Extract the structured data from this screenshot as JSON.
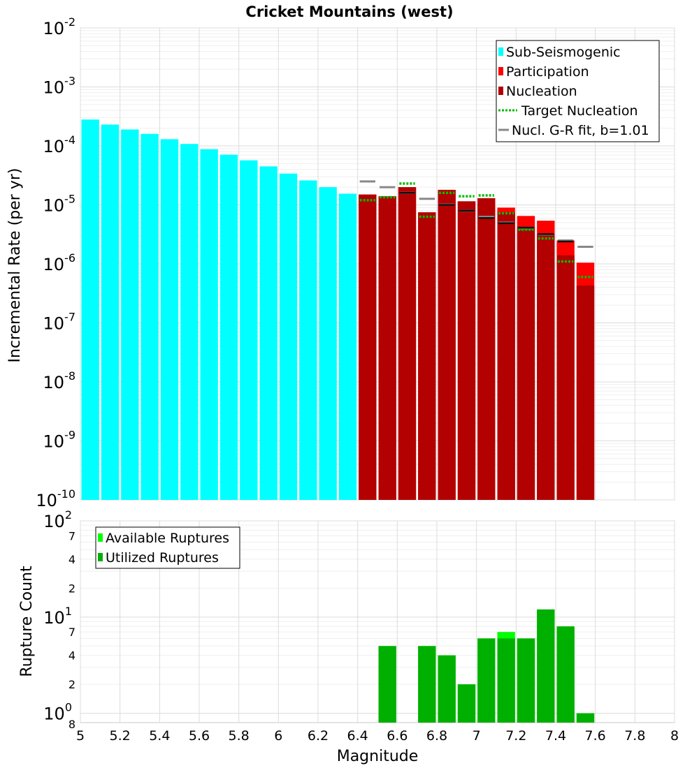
{
  "chart_data": [
    {
      "type": "bar",
      "title": "Cricket Mountains (west)",
      "xlabel": "",
      "ylabel": "Incremental Rate (per yr)",
      "yscale": "log",
      "xlim": [
        5,
        8
      ],
      "ylim": [
        1e-10,
        0.01
      ],
      "grid": true,
      "legend_position": "top-right",
      "y_tick_labels": [
        {
          "base": "10",
          "exp": "-10"
        },
        {
          "base": "10",
          "exp": "-9"
        },
        {
          "base": "10",
          "exp": "-8"
        },
        {
          "base": "10",
          "exp": "-7"
        },
        {
          "base": "10",
          "exp": "-6"
        },
        {
          "base": "10",
          "exp": "-5"
        },
        {
          "base": "10",
          "exp": "-4"
        },
        {
          "base": "10",
          "exp": "-3"
        },
        {
          "base": "10",
          "exp": "-2"
        }
      ],
      "legend": [
        {
          "label": "Sub-Seismogenic",
          "color": "#00ffff",
          "style": "box"
        },
        {
          "label": "Participation",
          "color": "#ff0000",
          "style": "box"
        },
        {
          "label": "Nucleation",
          "color": "#b30000",
          "style": "box"
        },
        {
          "label": "Target Nucleation",
          "color": "#00bb00",
          "style": "dotted"
        },
        {
          "label": "Nucl. G-R fit, b=1.01",
          "color": "#888888",
          "style": "line"
        }
      ],
      "series": [
        {
          "name": "Sub-Seismogenic",
          "color": "#00ffff",
          "x": [
            5.05,
            5.15,
            5.25,
            5.35,
            5.45,
            5.55,
            5.65,
            5.75,
            5.85,
            5.95,
            6.05,
            6.15,
            6.25,
            6.35
          ],
          "values": [
            0.00028,
            0.00023,
            0.00019,
            0.00016,
            0.00013,
            0.000108,
            8.8e-05,
            7.1e-05,
            5.7e-05,
            4.5e-05,
            3.4e-05,
            2.6e-05,
            2e-05,
            1.55e-05
          ]
        },
        {
          "name": "Participation",
          "color": "#ff0000",
          "x": [
            6.45,
            6.55,
            6.65,
            6.75,
            6.85,
            6.95,
            7.05,
            7.15,
            7.25,
            7.35,
            7.45,
            7.55
          ],
          "values": [
            1.5e-05,
            1.4e-05,
            2e-05,
            7.5e-06,
            1.8e-05,
            1.15e-05,
            1.3e-05,
            9e-06,
            6.5e-06,
            5.4e-06,
            2.5e-06,
            1.05e-06
          ]
        },
        {
          "name": "Nucleation",
          "color": "#b30000",
          "x": [
            6.45,
            6.55,
            6.65,
            6.75,
            6.85,
            6.95,
            7.05,
            7.15,
            7.25,
            7.35,
            7.45,
            7.55
          ],
          "values": [
            1.5e-05,
            1.4e-05,
            2e-05,
            7.5e-06,
            1.8e-05,
            1.15e-05,
            1.3e-05,
            7.5e-06,
            4.3e-06,
            3.3e-06,
            1.4e-06,
            4.3e-07
          ]
        },
        {
          "name": "Target Nucleation",
          "color": "#00bb00",
          "x": [
            6.45,
            6.55,
            6.65,
            6.75,
            6.85,
            6.95,
            7.05,
            7.15,
            7.25,
            7.35,
            7.45,
            7.55
          ],
          "values": [
            1.2e-05,
            1.35e-05,
            2.3e-05,
            6.3e-06,
            1.6e-05,
            1.4e-05,
            1.45e-05,
            7.2e-06,
            3.8e-06,
            2.7e-06,
            1.1e-06,
            6e-07
          ]
        },
        {
          "name": "Nucl. G-R fit, b=1.01",
          "color": "#888888",
          "x": [
            6.45,
            6.55,
            6.65,
            6.75,
            6.85,
            6.95,
            7.05,
            7.15,
            7.25,
            7.35,
            7.45,
            7.55
          ],
          "values": [
            2.5e-05,
            2e-05,
            1.6e-05,
            1.27e-05,
            1.01e-05,
            8e-06,
            6.3e-06,
            5e-06,
            4e-06,
            3.15e-06,
            2.5e-06,
            1.95e-06
          ]
        },
        {
          "name": "Nucleation marker",
          "color": "#111111",
          "x": [
            6.65,
            6.85,
            6.95,
            7.05,
            7.15,
            7.25,
            7.35,
            7.45
          ],
          "values": [
            1.6e-05,
            1e-05,
            8e-06,
            6e-06,
            4.9e-06,
            4.1e-06,
            3.2e-06,
            2.4e-06
          ]
        }
      ]
    },
    {
      "type": "bar",
      "title": "",
      "xlabel": "Magnitude",
      "ylabel": "Rupture Count",
      "yscale": "log",
      "xlim": [
        5,
        8
      ],
      "ylim": [
        0.8,
        100
      ],
      "grid": true,
      "legend_position": "top-left",
      "x_tick_labels": [
        "5",
        "5.2",
        "5.4",
        "5.6",
        "5.8",
        "6",
        "6.2",
        "6.4",
        "6.6",
        "6.8",
        "7",
        "7.2",
        "7.4",
        "7.6",
        "7.8",
        "8"
      ],
      "y_minor_tick_labels": [
        "2",
        "4",
        "7",
        "2",
        "4",
        "7",
        "8"
      ],
      "y_tick_labels": [
        {
          "base": "10",
          "exp": "0"
        },
        {
          "base": "10",
          "exp": "1"
        },
        {
          "base": "10",
          "exp": "2"
        }
      ],
      "legend": [
        {
          "label": "Available Ruptures",
          "color": "#00ff00",
          "style": "box"
        },
        {
          "label": "Utilized Ruptures",
          "color": "#00b000",
          "style": "box"
        }
      ],
      "series": [
        {
          "name": "Available Ruptures",
          "color": "#00ff00",
          "x": [
            6.55,
            6.75,
            6.85,
            6.95,
            7.05,
            7.15,
            7.25,
            7.35,
            7.45,
            7.55
          ],
          "values": [
            5,
            5,
            4,
            2,
            6,
            7,
            6,
            12,
            8,
            1
          ]
        },
        {
          "name": "Utilized Ruptures",
          "color": "#00b000",
          "x": [
            6.55,
            6.75,
            6.85,
            6.95,
            7.05,
            7.15,
            7.25,
            7.35,
            7.45,
            7.55
          ],
          "values": [
            5,
            5,
            4,
            2,
            6,
            6,
            6,
            12,
            8,
            1
          ]
        }
      ]
    }
  ]
}
